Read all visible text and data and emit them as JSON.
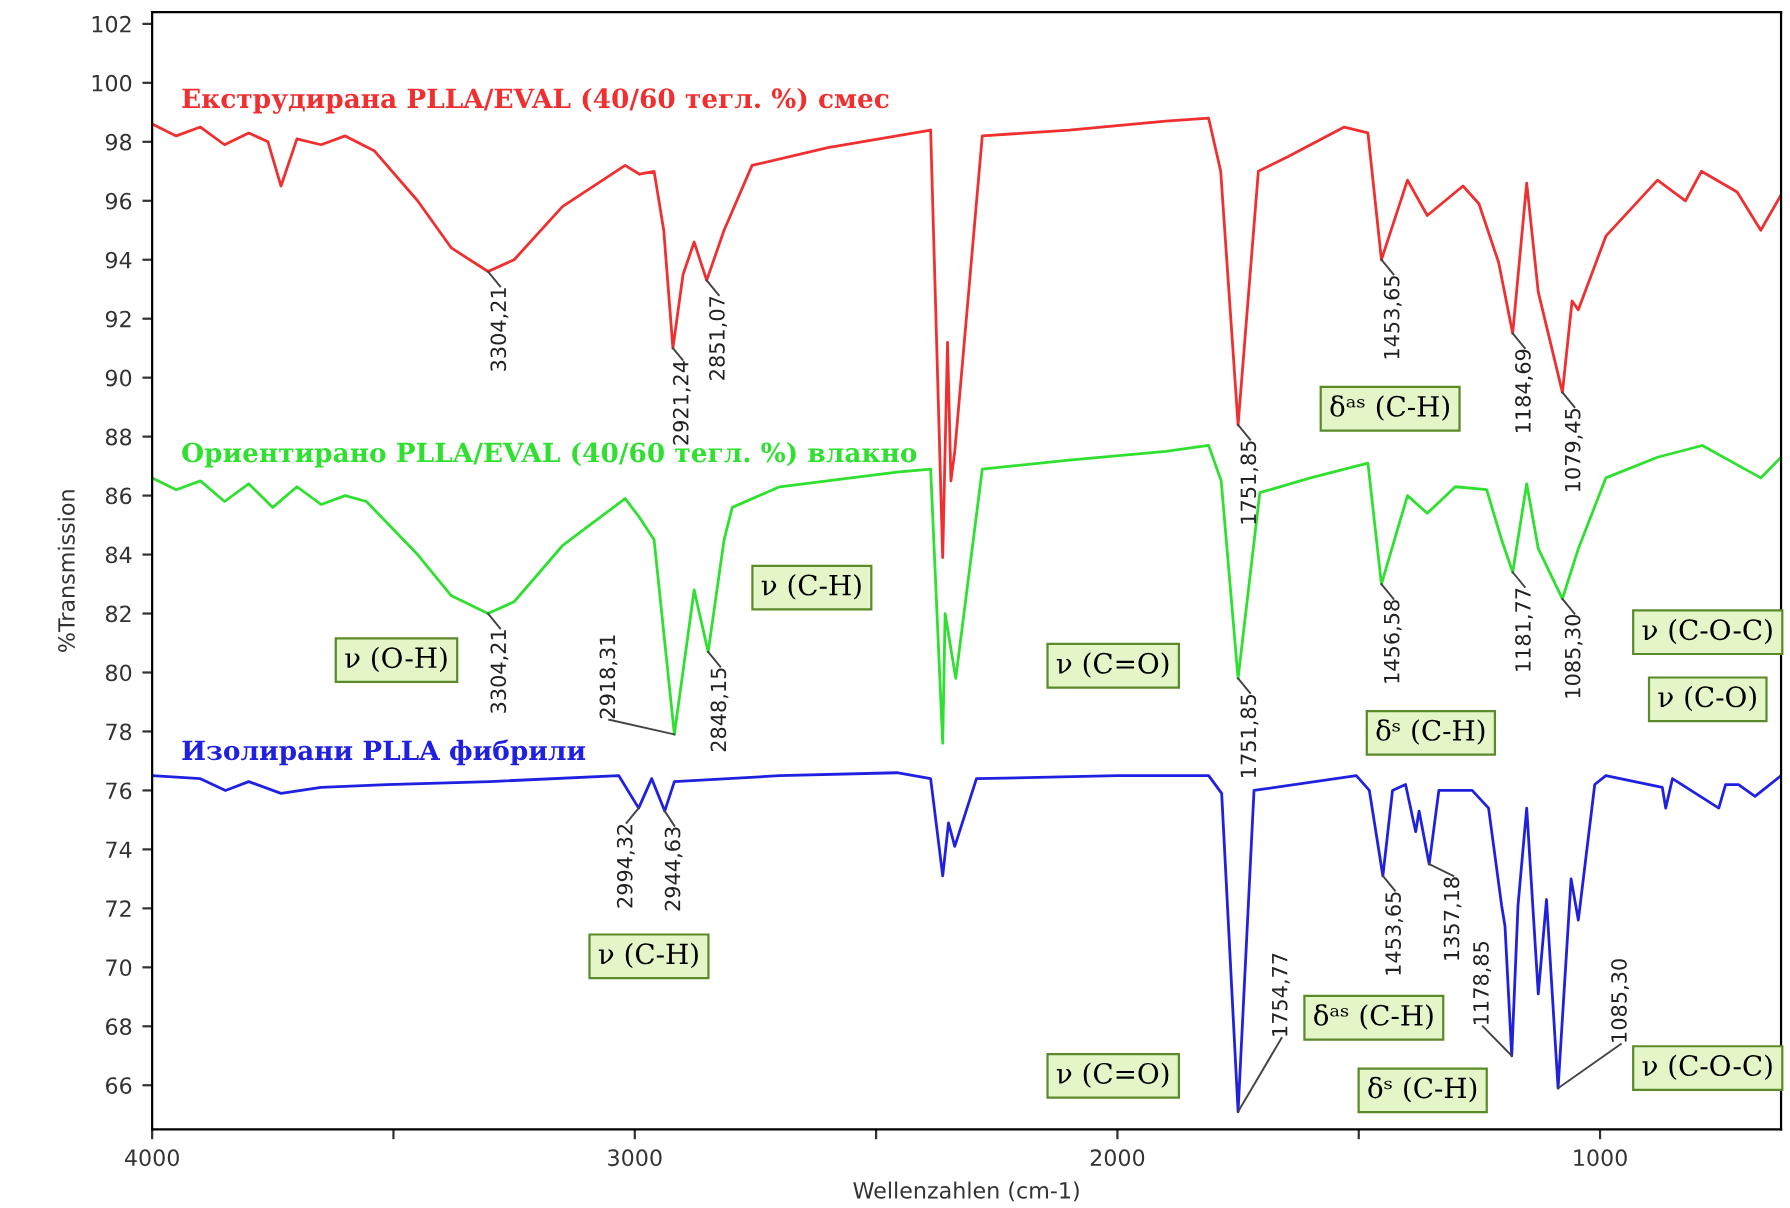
{
  "chart_data": {
    "type": "line",
    "xlabel": "Wellenzahlen (cm-1)",
    "ylabel": "%Transmission",
    "xlim": [
      4000,
      625
    ],
    "ylim": [
      64.5,
      102.4
    ],
    "xticks": [
      4000,
      {
        "value": 3500,
        "label": null
      },
      3000,
      {
        "value": 2500,
        "label": null
      },
      2000,
      {
        "value": 1500,
        "label": null
      },
      1000
    ],
    "yticks": [
      66,
      68,
      70,
      72,
      74,
      76,
      78,
      80,
      82,
      84,
      86,
      88,
      90,
      92,
      94,
      96,
      98,
      100,
      102
    ],
    "grid": false,
    "legend": false,
    "series": [
      {
        "name": "Екструдирана PLLA/EVAL (40/60 тегл. %) смес",
        "color": "#f03030",
        "x": [
          4000,
          3950,
          3900,
          3850,
          3800,
          3760,
          3733,
          3700,
          3650,
          3600,
          3540,
          3450,
          3380,
          3304,
          3250,
          3150,
          3020,
          2990,
          2960,
          2940,
          2921,
          2900,
          2877,
          2851,
          2815,
          2757,
          2600,
          2457,
          2387,
          2362,
          2352,
          2345,
          2337,
          2280,
          2100,
          1900,
          1811,
          1786,
          1750,
          1708,
          1646,
          1530,
          1481,
          1453,
          1399,
          1358,
          1284,
          1251,
          1210,
          1181,
          1152,
          1128,
          1078,
          1058,
          1045,
          988,
          881,
          823,
          790,
          716,
          667,
          625
        ],
        "values": [
          98.6,
          98.2,
          98.5,
          97.9,
          98.3,
          98.0,
          96.5,
          98.1,
          97.9,
          98.2,
          97.7,
          96.0,
          94.4,
          93.6,
          94.0,
          95.8,
          97.2,
          96.9,
          97.0,
          95.0,
          91.0,
          93.5,
          94.6,
          93.3,
          95.0,
          97.2,
          97.8,
          98.2,
          98.4,
          83.9,
          91.2,
          86.5,
          87.5,
          98.2,
          98.4,
          98.7,
          98.8,
          97.0,
          88.4,
          97.0,
          97.5,
          98.5,
          98.3,
          94.0,
          96.7,
          95.5,
          96.5,
          95.9,
          93.9,
          91.5,
          96.6,
          92.9,
          89.5,
          92.6,
          92.3,
          94.8,
          96.7,
          96.0,
          97.0,
          96.3,
          95.0,
          96.2
        ]
      },
      {
        "name": "Ориентирано PLLA/EVAL (40/60 тегл. %) влакно",
        "color": "#30e030",
        "x": [
          4000,
          3950,
          3900,
          3850,
          3800,
          3750,
          3700,
          3650,
          3600,
          3556,
          3450,
          3380,
          3304,
          3250,
          3150,
          3020,
          2992,
          2960,
          2918,
          2877,
          2848,
          2815,
          2798,
          2700,
          2457,
          2387,
          2362,
          2357,
          2335,
          2280,
          2100,
          1900,
          1811,
          1785,
          1750,
          1705,
          1600,
          1481,
          1453,
          1399,
          1358,
          1300,
          1235,
          1204,
          1181,
          1152,
          1128,
          1078,
          1045,
          988,
          881,
          788,
          667,
          625
        ],
        "values": [
          86.6,
          86.2,
          86.5,
          85.8,
          86.4,
          85.6,
          86.3,
          85.7,
          86.0,
          85.8,
          84.0,
          82.6,
          82.0,
          82.4,
          84.3,
          85.9,
          85.3,
          84.5,
          77.9,
          82.8,
          80.7,
          84.5,
          85.6,
          86.3,
          86.8,
          86.9,
          77.6,
          82.0,
          79.8,
          86.9,
          87.2,
          87.5,
          87.7,
          86.5,
          79.8,
          86.1,
          86.6,
          87.1,
          83.0,
          86.0,
          85.4,
          86.3,
          86.2,
          84.5,
          83.4,
          86.4,
          84.2,
          82.5,
          84.2,
          86.6,
          87.3,
          87.7,
          86.6,
          87.3
        ]
      },
      {
        "name": "Изолирани PLLA фибрили",
        "color": "#2020e0",
        "x": [
          4000,
          3900,
          3848,
          3800,
          3733,
          3650,
          3514,
          3300,
          3033,
          2992,
          2965,
          2938,
          2918,
          2700,
          2457,
          2387,
          2362,
          2350,
          2337,
          2292,
          2000,
          1811,
          1784,
          1750,
          1717,
          1505,
          1478,
          1450,
          1430,
          1403,
          1382,
          1375,
          1354,
          1334,
          1265,
          1231,
          1204,
          1197,
          1183,
          1170,
          1152,
          1128,
          1111,
          1087,
          1060,
          1045,
          1011,
          988,
          871,
          864,
          850,
          754,
          740,
          713,
          679,
          625
        ],
        "values": [
          76.5,
          76.4,
          76.0,
          76.3,
          75.9,
          76.1,
          76.2,
          76.3,
          76.5,
          75.4,
          76.4,
          75.3,
          76.3,
          76.5,
          76.6,
          76.4,
          73.1,
          74.9,
          74.1,
          76.4,
          76.5,
          76.5,
          75.9,
          65.1,
          76.0,
          76.5,
          76.0,
          73.1,
          76.0,
          76.2,
          74.6,
          75.3,
          73.5,
          76.0,
          76.0,
          75.4,
          72.1,
          71.4,
          67.0,
          72.1,
          75.4,
          69.1,
          72.3,
          65.9,
          73.0,
          71.6,
          76.2,
          76.5,
          76.1,
          75.4,
          76.4,
          75.4,
          76.2,
          76.2,
          75.8,
          76.5
        ]
      }
    ],
    "annotations": [
      {
        "text": "3304,21",
        "x": 3304,
        "y": 93.6
      },
      {
        "text": "2921,24",
        "x": 2921,
        "y": 91.0
      },
      {
        "text": "2851,07",
        "x": 2851,
        "y": 93.3
      },
      {
        "text": "1751,85",
        "x": 1750,
        "y": 88.4
      },
      {
        "text": "1453,65",
        "x": 1453,
        "y": 94.0
      },
      {
        "text": "1184,69",
        "x": 1181,
        "y": 91.5
      },
      {
        "text": "1079,45",
        "x": 1078,
        "y": 89.5
      },
      {
        "text": "3304,21",
        "x": 3304,
        "y": 82.0
      },
      {
        "text": "2918,31",
        "x": 2918,
        "y": 77.9
      },
      {
        "text": "2848,15",
        "x": 2848,
        "y": 80.7
      },
      {
        "text": "1751,85",
        "x": 1750,
        "y": 79.8
      },
      {
        "text": "1456,58",
        "x": 1453,
        "y": 83.0
      },
      {
        "text": "1181,77",
        "x": 1181,
        "y": 83.4
      },
      {
        "text": "1085,30",
        "x": 1078,
        "y": 82.5
      },
      {
        "text": "2994,32",
        "x": 2992,
        "y": 75.4
      },
      {
        "text": "2944,63",
        "x": 2938,
        "y": 75.3
      },
      {
        "text": "1754,77",
        "x": 1750,
        "y": 65.1
      },
      {
        "text": "1453,65",
        "x": 1450,
        "y": 73.1
      },
      {
        "text": "1357,18",
        "x": 1354,
        "y": 73.5
      },
      {
        "text": "1178,85",
        "x": 1183,
        "y": 67.0
      },
      {
        "text": "1085,30",
        "x": 1087,
        "y": 65.9
      },
      "ν (O-H)",
      "ν (C-H)",
      "ν (C=O)",
      "δᵃˢ (C-H)",
      "δˢ (C-H)",
      "ν (C-O-C)",
      "ν (C-O)",
      "ν (C-H)",
      "ν (C=O)",
      "δᵃˢ (C-H)",
      "δˢ (C-H)",
      "ν (C-O-C)"
    ]
  }
}
